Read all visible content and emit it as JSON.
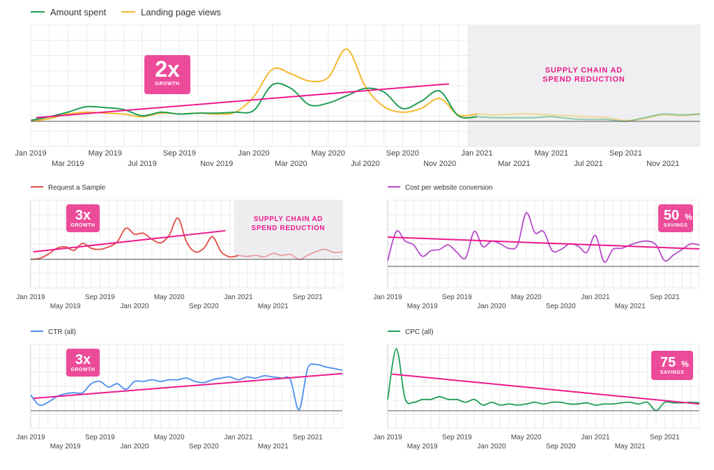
{
  "colors": {
    "amount_spent": "#1f9d55",
    "landing_page_views": "#f5b82e",
    "request_sample": "#e14b45",
    "cost_per_conversion": "#b54bc9",
    "ctr": "#4a8ff0",
    "cpc": "#1f9d55",
    "trend": "#ec1a8c",
    "badge": "#ec4b9a",
    "shade": "#ececef",
    "grid": "#eaeaea",
    "axis": "#555555"
  },
  "chart_data": [
    {
      "id": "main",
      "type": "line",
      "legend": [
        "Amount spent",
        "Landing page views"
      ],
      "x_start": "Jan 2019",
      "x_months": 36,
      "tick_labels": [
        "Jan 2019",
        "Mar 2019",
        "May 2019",
        "Jul 2019",
        "Sep 2019",
        "Nov 2019",
        "Jan 2020",
        "Mar 2020",
        "May 2020",
        "Jul 2020",
        "Sep 2020",
        "Nov 2020",
        "Jan 2021",
        "Mar 2021",
        "May 2021",
        "Jul 2021",
        "Sep 2021",
        "Nov 2021"
      ],
      "ylim": [
        0,
        100
      ],
      "shaded_from_month": 23.5,
      "annotation": "SUPPLY CHAIN AD SPEND REDUCTION",
      "badge": {
        "value": "2x",
        "label": "GROWTH"
      },
      "trend": {
        "from": [
          0.3,
          4
        ],
        "to": [
          22.5,
          41
        ]
      },
      "series": [
        {
          "name": "Amount spent",
          "x": [
            0,
            1,
            2,
            3,
            4,
            5,
            6,
            7,
            8,
            9,
            10,
            11,
            12,
            13,
            14,
            15,
            16,
            17,
            18,
            19,
            20,
            21,
            22,
            23,
            24,
            25,
            26,
            27,
            28,
            29,
            30,
            31,
            32,
            33,
            34,
            35,
            36
          ],
          "y": [
            1,
            5,
            10,
            16,
            15,
            13,
            6,
            10,
            8,
            9,
            9,
            10,
            12,
            40,
            36,
            18,
            20,
            28,
            36,
            32,
            14,
            22,
            33,
            6,
            5,
            4,
            4,
            4,
            5,
            3,
            2,
            2,
            0,
            4,
            8,
            7,
            8
          ]
        },
        {
          "name": "Landing page views",
          "x": [
            0,
            1,
            2,
            3,
            4,
            5,
            6,
            7,
            8,
            9,
            10,
            11,
            12,
            13,
            14,
            15,
            16,
            17,
            18,
            19,
            20,
            21,
            22,
            23,
            24,
            25,
            26,
            27,
            28,
            29,
            30,
            31,
            32,
            33,
            34,
            35,
            36
          ],
          "y": [
            0,
            3,
            8,
            10,
            9,
            8,
            5,
            9,
            8,
            9,
            8,
            10,
            27,
            57,
            52,
            44,
            48,
            79,
            38,
            16,
            10,
            14,
            25,
            7,
            8,
            7,
            8,
            8,
            7,
            6,
            5,
            4,
            1,
            3,
            7,
            6,
            8
          ]
        }
      ]
    },
    {
      "id": "request",
      "type": "line",
      "legend": [
        "Request a Sample"
      ],
      "tick_labels": [
        "Jan 2019",
        "May 2019",
        "Sep 2019",
        "Jan 2020",
        "May 2020",
        "Sep 2020",
        "Jan 2021",
        "May 2021",
        "Sep 2021"
      ],
      "ylim": [
        0,
        100
      ],
      "shaded_from_month": 23.5,
      "annotation": "SUPPLY CHAIN AD SPEND REDUCTION",
      "badge": {
        "value": "3x",
        "label": "GROWTH"
      },
      "trend": {
        "from": [
          0.3,
          15
        ],
        "to": [
          22.5,
          57
        ]
      },
      "series": [
        {
          "name": "Request a Sample",
          "x": [
            0,
            1,
            2,
            3,
            4,
            5,
            6,
            7,
            8,
            9,
            10,
            11,
            12,
            13,
            14,
            15,
            16,
            17,
            18,
            19,
            20,
            21,
            22,
            23,
            24,
            25,
            26,
            27,
            28,
            29,
            30,
            31,
            32,
            33,
            34,
            35,
            36
          ],
          "y": [
            0,
            2,
            10,
            22,
            25,
            18,
            32,
            22,
            20,
            25,
            35,
            62,
            50,
            52,
            40,
            33,
            48,
            82,
            35,
            15,
            22,
            45,
            15,
            5,
            8,
            6,
            8,
            5,
            12,
            8,
            10,
            0,
            8,
            16,
            20,
            14,
            15
          ]
        }
      ]
    },
    {
      "id": "cost",
      "type": "line",
      "legend": [
        "Cost per website conversion"
      ],
      "tick_labels": [
        "Jan 2019",
        "May 2019",
        "Sep 2019",
        "Jan 2020",
        "May 2020",
        "Sep 2020",
        "Jan 2021",
        "May 2021",
        "Sep 2021"
      ],
      "ylim": [
        0,
        100
      ],
      "badge": {
        "value": "50",
        "unit": "%",
        "label": "SAVINGS"
      },
      "trend": {
        "from": [
          0,
          52
        ],
        "to": [
          36,
          31
        ]
      },
      "series": [
        {
          "name": "Cost per website conversion",
          "x": [
            0,
            1,
            2,
            3,
            4,
            5,
            6,
            7,
            8,
            9,
            10,
            11,
            12,
            13,
            14,
            15,
            16,
            17,
            18,
            19,
            20,
            21,
            22,
            23,
            24,
            25,
            26,
            27,
            28,
            29,
            30,
            31,
            32,
            33,
            34,
            35,
            36
          ],
          "y": [
            10,
            62,
            45,
            38,
            18,
            28,
            30,
            38,
            25,
            15,
            62,
            35,
            45,
            40,
            32,
            38,
            95,
            60,
            62,
            28,
            30,
            40,
            36,
            25,
            55,
            8,
            30,
            32,
            38,
            43,
            45,
            38,
            10,
            20,
            30,
            40,
            38
          ]
        }
      ]
    },
    {
      "id": "ctr",
      "type": "line",
      "legend": [
        "CTR (all)"
      ],
      "tick_labels": [
        "Jan 2019",
        "May 2019",
        "Sep 2019",
        "Jan 2020",
        "May 2020",
        "Sep 2020",
        "Jan 2021",
        "May 2021",
        "Sep 2021"
      ],
      "ylim": [
        0,
        100
      ],
      "badge": {
        "value": "3x",
        "label": "GROWTH"
      },
      "trend": {
        "from": [
          0.3,
          22
        ],
        "to": [
          36,
          66
        ]
      },
      "series": [
        {
          "name": "CTR (all)",
          "x": [
            0,
            1,
            2,
            3,
            4,
            5,
            6,
            7,
            8,
            9,
            10,
            11,
            12,
            13,
            14,
            15,
            16,
            17,
            18,
            19,
            20,
            21,
            22,
            23,
            24,
            25,
            26,
            27,
            28,
            29,
            30,
            31,
            32,
            33,
            34,
            35,
            36
          ],
          "y": [
            28,
            10,
            15,
            25,
            30,
            32,
            32,
            48,
            52,
            42,
            48,
            38,
            52,
            52,
            55,
            52,
            55,
            55,
            58,
            52,
            50,
            55,
            58,
            60,
            55,
            60,
            58,
            62,
            60,
            58,
            55,
            2,
            75,
            82,
            78,
            75,
            72
          ]
        }
      ]
    },
    {
      "id": "cpc",
      "type": "line",
      "legend": [
        "CPC (all)"
      ],
      "tick_labels": [
        "Jan 2019",
        "May 2019",
        "Sep 2019",
        "Jan 2020",
        "May 2020",
        "Sep 2020",
        "Jan 2021",
        "May 2021",
        "Sep 2021"
      ],
      "ylim": [
        0,
        100
      ],
      "badge": {
        "value": "75",
        "unit": "%",
        "label": "SAVINGS"
      },
      "trend": {
        "from": [
          0.5,
          65
        ],
        "to": [
          36,
          12
        ]
      },
      "series": [
        {
          "name": "CPC (all)",
          "x": [
            0,
            1,
            2,
            3,
            4,
            5,
            6,
            7,
            8,
            9,
            10,
            11,
            12,
            13,
            14,
            15,
            16,
            17,
            18,
            19,
            20,
            21,
            22,
            23,
            24,
            25,
            26,
            27,
            28,
            29,
            30,
            31,
            32,
            33,
            34,
            35,
            36
          ],
          "y": [
            20,
            110,
            22,
            15,
            20,
            20,
            25,
            20,
            20,
            15,
            20,
            10,
            15,
            10,
            12,
            10,
            12,
            15,
            12,
            15,
            15,
            12,
            12,
            14,
            10,
            12,
            12,
            14,
            15,
            12,
            15,
            0,
            15,
            14,
            14,
            15,
            14
          ]
        }
      ]
    }
  ]
}
